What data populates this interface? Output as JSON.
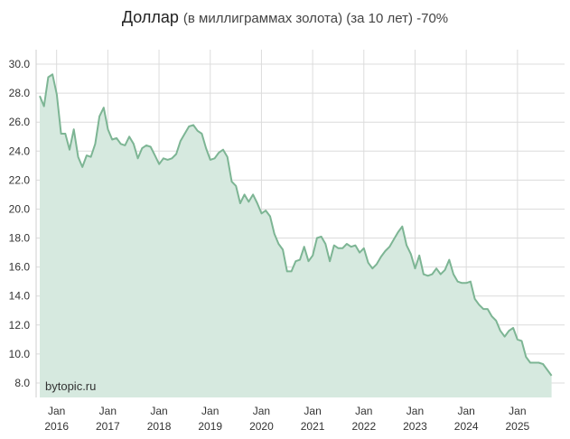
{
  "title": {
    "main": "Доллар",
    "suffix": "(в миллиграммах золота) (за 10 лет) -70%"
  },
  "watermark": "bytopic.ru",
  "colors": {
    "line": "#7db594",
    "fill": "#d6e9df",
    "grid": "#dcdcdc"
  },
  "chart_data": {
    "type": "area",
    "title": "Доллар (в миллиграммах золота) (за 10 лет) -70%",
    "xlabel": "",
    "ylabel": "",
    "ylim": [
      7.0,
      31.0
    ],
    "xlim": [
      2015.6,
      2025.92
    ],
    "grid": true,
    "legend": "none",
    "yticks": [
      "8.0",
      "10.0",
      "12.0",
      "14.0",
      "16.0",
      "18.0",
      "20.0",
      "22.0",
      "24.0",
      "26.0",
      "28.0",
      "30.0"
    ],
    "xticks": [
      {
        "line1": "Jan",
        "line2": "2016",
        "x": 2016
      },
      {
        "line1": "Jan",
        "line2": "2017",
        "x": 2017
      },
      {
        "line1": "Jan",
        "line2": "2018",
        "x": 2018
      },
      {
        "line1": "Jan",
        "line2": "2019",
        "x": 2019
      },
      {
        "line1": "Jan",
        "line2": "2020",
        "x": 2020
      },
      {
        "line1": "Jan",
        "line2": "2021",
        "x": 2021
      },
      {
        "line1": "Jan",
        "line2": "2022",
        "x": 2022
      },
      {
        "line1": "Jan",
        "line2": "2023",
        "x": 2023
      },
      {
        "line1": "Jan",
        "line2": "2024",
        "x": 2024
      },
      {
        "line1": "Jan",
        "line2": "2025",
        "x": 2025
      }
    ],
    "start_year": 2015.67,
    "step": 0.0833,
    "values": [
      27.8,
      27.1,
      29.1,
      29.3,
      27.9,
      25.2,
      25.2,
      24.1,
      25.5,
      23.6,
      22.9,
      23.7,
      23.6,
      24.5,
      26.4,
      27.0,
      25.5,
      24.8,
      24.9,
      24.5,
      24.4,
      25.0,
      24.5,
      23.5,
      24.2,
      24.4,
      24.3,
      23.7,
      23.1,
      23.5,
      23.4,
      23.5,
      23.8,
      24.7,
      25.2,
      25.7,
      25.8,
      25.4,
      25.2,
      24.2,
      23.4,
      23.5,
      23.9,
      24.1,
      23.6,
      21.9,
      21.6,
      20.4,
      21.0,
      20.5,
      21.0,
      20.4,
      19.7,
      19.9,
      19.5,
      18.3,
      17.6,
      17.2,
      15.7,
      15.7,
      16.4,
      16.5,
      17.4,
      16.4,
      16.8,
      18.0,
      18.1,
      17.6,
      16.4,
      17.5,
      17.3,
      17.3,
      17.6,
      17.4,
      17.5,
      17.0,
      17.3,
      16.3,
      15.9,
      16.2,
      16.7,
      17.1,
      17.4,
      17.9,
      18.4,
      18.8,
      17.5,
      16.9,
      15.9,
      16.8,
      15.5,
      15.4,
      15.5,
      15.9,
      15.5,
      15.8,
      16.5,
      15.5,
      15.0,
      14.9,
      14.9,
      15.0,
      13.8,
      13.4,
      13.1,
      13.1,
      12.6,
      12.3,
      11.6,
      11.2,
      11.6,
      11.8,
      11.0,
      10.9,
      9.8,
      9.4,
      9.4,
      9.4,
      9.3,
      8.9,
      8.5
    ]
  }
}
